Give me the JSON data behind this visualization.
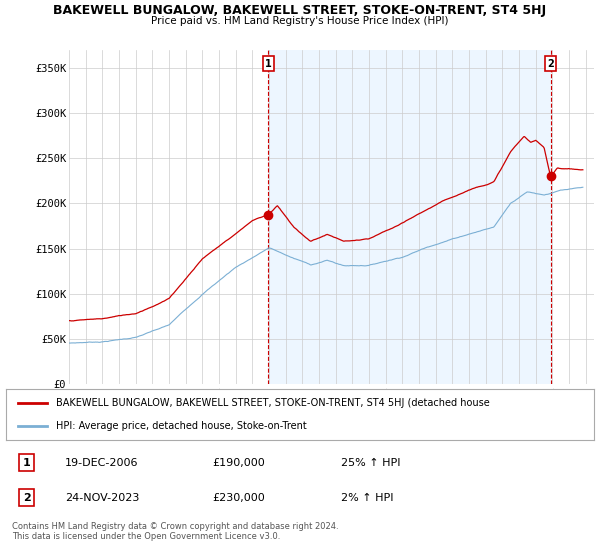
{
  "title": "BAKEWELL BUNGALOW, BAKEWELL STREET, STOKE-ON-TRENT, ST4 5HJ",
  "subtitle": "Price paid vs. HM Land Registry's House Price Index (HPI)",
  "ylabel_ticks": [
    "£0",
    "£50K",
    "£100K",
    "£150K",
    "£200K",
    "£250K",
    "£300K",
    "£350K"
  ],
  "ytick_vals": [
    0,
    50000,
    100000,
    150000,
    200000,
    250000,
    300000,
    350000
  ],
  "ylim": [
    0,
    370000
  ],
  "xlim_start": 1995.0,
  "xlim_end": 2026.5,
  "hpi_color": "#7bafd4",
  "price_color": "#cc0000",
  "vline_color": "#cc0000",
  "shade_color": "#ddeeff",
  "grid_color": "#cccccc",
  "bg_color": "#ffffff",
  "legend_entry1": "BAKEWELL BUNGALOW, BAKEWELL STREET, STOKE-ON-TRENT, ST4 5HJ (detached house",
  "legend_entry2": "HPI: Average price, detached house, Stoke-on-Trent",
  "transaction1_label": "1",
  "transaction1_date": "19-DEC-2006",
  "transaction1_price": "£190,000",
  "transaction1_hpi": "25% ↑ HPI",
  "transaction1_year": 2006.97,
  "transaction1_value": 190000,
  "transaction2_label": "2",
  "transaction2_date": "24-NOV-2023",
  "transaction2_price": "£230,000",
  "transaction2_hpi": "2% ↑ HPI",
  "transaction2_year": 2023.9,
  "transaction2_value": 230000,
  "footer": "Contains HM Land Registry data © Crown copyright and database right 2024.\nThis data is licensed under the Open Government Licence v3.0."
}
